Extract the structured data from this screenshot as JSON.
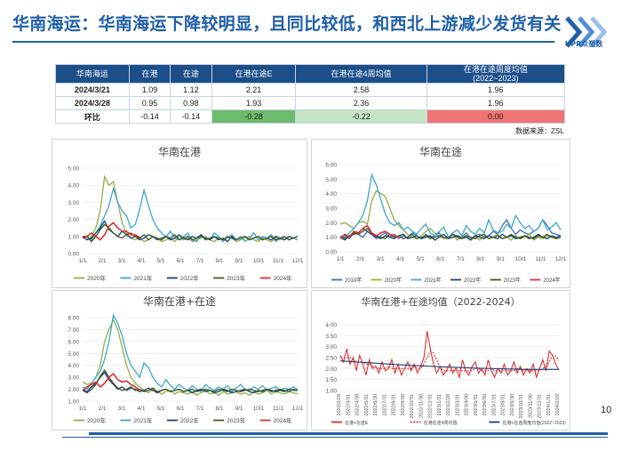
{
  "header": {
    "title": "华南海运：华南海运下降较明显，且同比较低，和西北上游减少发货有关"
  },
  "logo": {
    "text": "UPR众塑数"
  },
  "table": {
    "headers": [
      "华南海运",
      "在港",
      "在途",
      "在港在途E",
      "在港在途4周均值",
      "在港在途周度均值\n(2022~2023)"
    ],
    "rows": [
      [
        "2024/3/21",
        "1.09",
        "1.12",
        "2.21",
        "2.58",
        "1.96"
      ],
      [
        "2024/3/28",
        "0.95",
        "0.98",
        "1.93",
        "2.36",
        "1.96"
      ],
      [
        "环比",
        "-0.14",
        "-0.14",
        "-0.28",
        "-0.22",
        "0.00"
      ]
    ],
    "source": "数据来源：ZSL"
  },
  "colors": {
    "2019": "#3a6fc0",
    "2020": "#93ae46",
    "2021": "#3ca8cc",
    "2022": "#1d3f7a",
    "2023": "#3e5a1e",
    "2024": "#d93030",
    "ma4": "#d93030",
    "avg": "#3aa654"
  },
  "page_number": "10",
  "chart_data": [
    {
      "type": "line",
      "title": "华南在港",
      "xticks": [
        "1/1",
        "2/1",
        "3/1",
        "4/1",
        "5/1",
        "6/1",
        "7/1",
        "8/1",
        "9/1",
        "10/1",
        "11/1",
        "12/1"
      ],
      "ylim": [
        0,
        5
      ],
      "yticks": [
        "0.00",
        "1.00",
        "2.00",
        "3.00",
        "4.00",
        "5.00"
      ],
      "legend": [
        "2020年",
        "2021年",
        "2022年",
        "2023年",
        "2024年"
      ],
      "series": [
        {
          "name": "2020年",
          "values": [
            1.0,
            0.8,
            1.0,
            1.5,
            2.5,
            4.5,
            4.0,
            4.2,
            3.0,
            1.8,
            1.2,
            0.9,
            0.8,
            0.9,
            0.7,
            0.8,
            1.0,
            0.9,
            0.7,
            0.8,
            0.9,
            0.7,
            1.0,
            0.8,
            0.9,
            0.7,
            0.8,
            0.9,
            1.0,
            0.8,
            0.7,
            0.9,
            0.8,
            1.0,
            0.9,
            0.7,
            0.8,
            0.9,
            1.0,
            0.8,
            0.7,
            0.9,
            0.8,
            0.7,
            0.9,
            0.8,
            1.0,
            0.8,
            0.9,
            0.8
          ]
        },
        {
          "name": "2021年",
          "values": [
            0.9,
            1.0,
            0.8,
            1.2,
            1.6,
            2.2,
            2.8,
            3.8,
            3.0,
            2.5,
            2.2,
            1.5,
            1.7,
            2.6,
            3.7,
            2.8,
            2.0,
            1.5,
            1.2,
            1.0,
            1.3,
            0.9,
            0.8,
            1.0,
            1.2,
            0.8,
            0.7,
            1.1,
            0.9,
            0.8,
            1.2,
            1.0,
            0.7,
            0.9,
            1.1,
            0.8,
            1.0,
            0.7,
            0.9,
            1.2,
            0.8,
            1.0,
            0.9,
            1.1,
            0.7,
            0.9,
            0.8,
            1.0,
            0.9,
            0.8
          ]
        },
        {
          "name": "2022年",
          "values": [
            1.0,
            0.8,
            0.9,
            1.2,
            1.5,
            1.9,
            1.4,
            1.2,
            1.0,
            1.3,
            1.1,
            0.9,
            1.0,
            0.8,
            0.9,
            1.1,
            1.0,
            0.8,
            0.9,
            1.0,
            0.8,
            0.9,
            1.1,
            0.9,
            0.8,
            1.0,
            0.9,
            1.1,
            0.8,
            0.9,
            1.0,
            0.8,
            0.9,
            0.7,
            1.0,
            0.8,
            0.9,
            1.0,
            0.8,
            0.9,
            1.0,
            0.8,
            0.9,
            0.8,
            1.0,
            0.9,
            0.8,
            1.0,
            0.9,
            1.0
          ]
        },
        {
          "name": "2023年",
          "values": [
            0.9,
            1.0,
            0.7,
            1.0,
            1.4,
            1.7,
            1.5,
            1.2,
            1.0,
            0.9,
            1.1,
            1.2,
            1.0,
            0.9,
            1.1,
            0.8,
            1.0,
            0.9,
            0.8,
            1.0,
            0.9,
            1.1,
            0.8,
            0.9,
            1.0,
            0.8,
            0.9,
            1.0,
            0.9,
            0.8,
            1.0,
            0.9,
            0.8,
            1.0,
            0.9,
            0.8,
            0.9,
            1.0,
            0.8,
            0.9,
            1.0,
            0.8,
            0.9,
            1.0,
            0.8,
            0.9,
            1.0,
            0.8,
            0.9,
            1.0
          ]
        },
        {
          "name": "2024年",
          "values": [
            1.0,
            1.0,
            1.2,
            1.0,
            0.8,
            1.1,
            1.6,
            1.8,
            1.5,
            1.3,
            1.3,
            1.1,
            1.09,
            0.95
          ]
        }
      ]
    },
    {
      "type": "line",
      "title": "华南在途",
      "xticks": [
        "1/1",
        "2/1",
        "3/1",
        "4/1",
        "5/1",
        "6/1",
        "7/1",
        "8/1",
        "9/1",
        "10/1",
        "11/1",
        "12/1"
      ],
      "ylim": [
        0,
        6
      ],
      "yticks": [
        "0.00",
        "1.00",
        "2.00",
        "3.00",
        "4.00",
        "5.00",
        "6.00"
      ],
      "legend": [
        "2019年",
        "2020年",
        "2021年",
        "2022年",
        "2023年",
        "2024年"
      ],
      "series": [
        {
          "name": "2019年",
          "values": [
            1.0,
            1.1,
            0.9,
            1.3,
            1.2,
            1.0,
            1.4,
            1.2,
            0.9,
            1.1,
            1.3,
            1.0,
            1.2,
            0.9,
            1.1,
            1.0,
            1.3,
            1.1,
            0.9,
            1.2,
            1.0,
            1.1,
            1.3,
            0.9,
            1.0,
            1.2,
            1.1,
            1.0,
            1.3,
            0.9,
            1.1,
            1.2,
            1.0,
            1.1,
            1.4,
            1.2,
            1.8,
            2.2,
            1.6,
            1.2,
            1.5,
            1.3,
            1.2,
            1.4,
            1.6,
            2.2,
            1.8,
            1.3,
            1.2,
            1.1
          ]
        },
        {
          "name": "2020年",
          "values": [
            1.9,
            2.0,
            1.8,
            1.6,
            2.0,
            2.1,
            1.9,
            3.5,
            4.2,
            4.0,
            3.8,
            3.0,
            2.2,
            1.8,
            1.5,
            1.2,
            1.0,
            0.9,
            1.1,
            1.4,
            1.6,
            1.3,
            1.1,
            0.9,
            1.0,
            1.2,
            0.8,
            1.0,
            1.1,
            0.9,
            1.0,
            0.8,
            1.1,
            0.9,
            1.0,
            1.2,
            0.9,
            1.0,
            0.8,
            1.1,
            0.9,
            1.0,
            1.2,
            0.8,
            1.0,
            0.9,
            1.1,
            1.0,
            0.9,
            1.0
          ]
        },
        {
          "name": "2021年",
          "values": [
            1.1,
            1.0,
            1.3,
            1.6,
            2.0,
            2.5,
            3.5,
            5.3,
            4.6,
            3.6,
            2.6,
            2.0,
            1.8,
            2.0,
            1.5,
            1.7,
            1.4,
            1.2,
            1.6,
            1.9,
            1.3,
            1.1,
            1.4,
            1.7,
            1.0,
            1.3,
            1.5,
            1.1,
            1.8,
            1.4,
            1.2,
            1.6,
            1.3,
            2.2,
            1.5,
            1.3,
            1.4,
            1.9,
            1.6,
            2.5,
            2.0,
            1.6,
            1.8,
            1.4,
            1.6,
            2.2,
            1.5,
            1.7,
            2.0,
            1.5
          ]
        },
        {
          "name": "2022年",
          "values": [
            1.0,
            0.9,
            1.1,
            1.2,
            1.3,
            1.6,
            1.4,
            1.2,
            1.0,
            0.9,
            1.1,
            1.0,
            0.9,
            1.1,
            1.2,
            0.9,
            1.0,
            1.1,
            0.9,
            1.0,
            1.1,
            0.8,
            1.0,
            1.2,
            0.9,
            1.0,
            1.1,
            0.9,
            1.0,
            0.8,
            1.1,
            1.0,
            0.9,
            1.1,
            1.0,
            0.9,
            1.2,
            1.0,
            1.1,
            0.9,
            1.0,
            1.1,
            0.9,
            1.0,
            1.2,
            1.0,
            0.9,
            1.1,
            1.0,
            1.1
          ]
        },
        {
          "name": "2023年",
          "values": [
            1.0,
            0.8,
            1.1,
            1.3,
            1.2,
            1.4,
            1.6,
            1.3,
            1.1,
            1.0,
            0.9,
            1.2,
            1.0,
            1.1,
            0.9,
            1.0,
            1.2,
            0.9,
            1.0,
            1.1,
            0.9,
            1.0,
            1.1,
            1.0,
            0.9,
            1.2,
            1.0,
            0.9,
            1.1,
            1.0,
            0.9,
            1.1,
            1.2,
            0.9,
            1.0,
            1.1,
            0.9,
            1.0,
            1.2,
            1.0,
            0.9,
            1.1,
            1.0,
            0.9,
            1.1,
            1.0,
            1.2,
            1.0,
            0.9,
            1.0
          ]
        },
        {
          "name": "2024年",
          "values": [
            0.9,
            1.2,
            1.0,
            1.4,
            1.3,
            1.6,
            1.8,
            1.3,
            1.1,
            1.3,
            1.4,
            1.2,
            1.12,
            0.98
          ]
        }
      ]
    },
    {
      "type": "line",
      "title": "华南在港+在途",
      "xticks": [
        "1/1",
        "2/1",
        "3/1",
        "4/1",
        "5/1",
        "6/1",
        "7/1",
        "8/1",
        "9/1",
        "10/1",
        "11/1",
        "12/1"
      ],
      "ylim": [
        1,
        8
      ],
      "yticks": [
        "1.00",
        "2.00",
        "3.00",
        "4.00",
        "5.00",
        "6.00",
        "7.00",
        "8.00"
      ],
      "legend": [
        "2020年",
        "2021年",
        "2022年",
        "2023年",
        "2024年"
      ],
      "series": [
        {
          "name": "2020年",
          "values": [
            2.6,
            2.4,
            2.5,
            3.0,
            4.0,
            6.0,
            7.0,
            7.8,
            7.0,
            5.5,
            4.0,
            3.0,
            2.5,
            2.2,
            1.9,
            1.7,
            2.0,
            1.8,
            1.6,
            1.8,
            1.9,
            1.6,
            1.8,
            1.7,
            1.6,
            1.8,
            1.5,
            1.7,
            1.9,
            1.6,
            1.7,
            1.5,
            1.8,
            1.6,
            1.7,
            1.8,
            1.6,
            1.7,
            1.5,
            1.8,
            1.6,
            1.7,
            1.9,
            1.6,
            1.8,
            1.7,
            1.6,
            1.8,
            1.7,
            1.6
          ]
        },
        {
          "name": "2021年",
          "values": [
            2.2,
            2.0,
            2.5,
            3.0,
            3.5,
            4.5,
            6.0,
            8.2,
            7.5,
            6.5,
            5.0,
            4.0,
            3.5,
            3.0,
            4.2,
            3.8,
            3.0,
            2.5,
            2.2,
            2.8,
            2.3,
            2.0,
            2.4,
            2.1,
            1.9,
            2.3,
            2.0,
            1.8,
            2.4,
            2.1,
            1.9,
            2.2,
            2.0,
            2.3,
            1.8,
            2.1,
            2.4,
            2.0,
            1.9,
            2.2,
            2.0,
            2.3,
            1.9,
            2.1,
            2.2,
            1.9,
            2.1,
            2.0,
            2.2,
            2.0
          ]
        },
        {
          "name": "2022年",
          "values": [
            2.0,
            1.8,
            2.2,
            2.5,
            3.0,
            3.4,
            2.8,
            2.4,
            2.0,
            2.2,
            1.9,
            2.1,
            2.0,
            1.8,
            1.9,
            2.1,
            1.9,
            1.7,
            1.9,
            2.0,
            1.8,
            1.9,
            2.0,
            1.8,
            1.9,
            1.7,
            1.9,
            2.0,
            1.8,
            1.9,
            1.7,
            1.8,
            2.0,
            1.9,
            1.7,
            1.8,
            1.9,
            2.0,
            1.8,
            1.7,
            1.9,
            1.8,
            2.0,
            1.9,
            1.8,
            1.9,
            1.8,
            2.0,
            1.9,
            1.9
          ]
        },
        {
          "name": "2023年",
          "values": [
            1.9,
            1.7,
            2.0,
            2.4,
            3.1,
            3.6,
            3.0,
            2.5,
            2.1,
            1.9,
            2.0,
            2.2,
            1.9,
            2.0,
            1.8,
            1.9,
            2.1,
            1.8,
            1.9,
            2.0,
            1.8,
            1.9,
            2.0,
            1.8,
            1.9,
            2.0,
            1.8,
            1.9,
            2.0,
            1.9,
            1.8,
            2.0,
            1.9,
            1.8,
            2.0,
            1.9,
            1.8,
            1.9,
            2.0,
            1.9,
            1.8,
            1.9,
            2.0,
            1.8,
            1.9,
            2.0,
            1.9,
            1.8,
            2.0,
            1.9
          ]
        },
        {
          "name": "2024年",
          "values": [
            1.9,
            2.2,
            2.4,
            2.6,
            2.2,
            2.5,
            3.0,
            3.3,
            2.8,
            2.6,
            2.7,
            2.4,
            2.21,
            1.93
          ]
        }
      ]
    },
    {
      "type": "line",
      "title": "华南在港+在途均值（2022-2024）",
      "xticks": [
        "2022/2/28",
        "2022/3/31",
        "2022/4/30",
        "2022/5/31",
        "2022/6/30",
        "2022/7/31",
        "2022/8/31",
        "2022/9/30",
        "2022/10/31",
        "2022/11/30",
        "2022/12/31",
        "2023/1/31",
        "2023/2/28",
        "2023/3/31",
        "2023/4/30",
        "2023/5/31",
        "2023/6/30",
        "2023/7/31",
        "2023/8/31",
        "2023/9/30",
        "2023/10/31",
        "2023/11/30",
        "2023/12/31",
        "2024/1/31",
        "2024/2/29"
      ],
      "ylim": [
        1,
        4
      ],
      "yticks": [
        "1.00",
        "1.50",
        "2.00",
        "2.50",
        "3.00",
        "3.50",
        "4.00"
      ],
      "legend": [
        "在港+在途E",
        "在港在途4周均值",
        "在港+在途周度均值(2022~2023)"
      ],
      "series": [
        {
          "name": "在港+在途E",
          "values": [
            2.6,
            2.3,
            2.9,
            2.2,
            2.5,
            1.9,
            2.6,
            2.2,
            1.7,
            2.4,
            2.0,
            2.1,
            1.8,
            2.3,
            1.9,
            2.0,
            2.4,
            1.8,
            2.2,
            1.7,
            2.0,
            2.3,
            1.9,
            2.2,
            1.8,
            2.1,
            2.5,
            3.7,
            2.9,
            2.2,
            1.8,
            2.1,
            1.7,
            1.9,
            2.2,
            1.8,
            2.0,
            1.6,
            2.4,
            1.9,
            1.7,
            2.1,
            2.3,
            1.8,
            2.0,
            1.7,
            2.4,
            1.9,
            1.6,
            2.0,
            1.8,
            2.2,
            1.7,
            1.9,
            2.3,
            1.8,
            2.1,
            1.7,
            2.0,
            1.8,
            2.2,
            1.6,
            2.0,
            2.4,
            1.9,
            2.8,
            2.6,
            2.21,
            1.93
          ]
        },
        {
          "name": "在港在途4周均值",
          "values": [
            2.5,
            2.5,
            2.5,
            2.5,
            2.4,
            2.3,
            2.3,
            2.3,
            2.2,
            2.2,
            2.1,
            2.1,
            2.0,
            2.0,
            2.0,
            2.1,
            2.0,
            2.0,
            2.0,
            2.0,
            2.0,
            2.0,
            2.0,
            2.1,
            2.0,
            2.0,
            2.2,
            2.5,
            2.8,
            2.7,
            2.4,
            2.1,
            1.9,
            1.9,
            1.9,
            1.9,
            2.0,
            1.9,
            1.9,
            1.9,
            1.9,
            1.9,
            2.0,
            2.0,
            1.9,
            1.9,
            1.9,
            2.0,
            1.9,
            1.9,
            1.9,
            1.9,
            1.9,
            1.9,
            1.9,
            2.0,
            2.0,
            1.9,
            1.9,
            1.9,
            1.9,
            1.9,
            1.9,
            2.0,
            2.1,
            2.3,
            2.6,
            2.58,
            2.36
          ]
        },
        {
          "name": "在港+在途周度均值(2022~2023)",
          "values": [
            2.35,
            2.3,
            2.25,
            2.2,
            2.15,
            2.12,
            2.08,
            2.05,
            2.02,
            2.0,
            1.98,
            1.96,
            1.96,
            1.96
          ]
        }
      ]
    }
  ]
}
